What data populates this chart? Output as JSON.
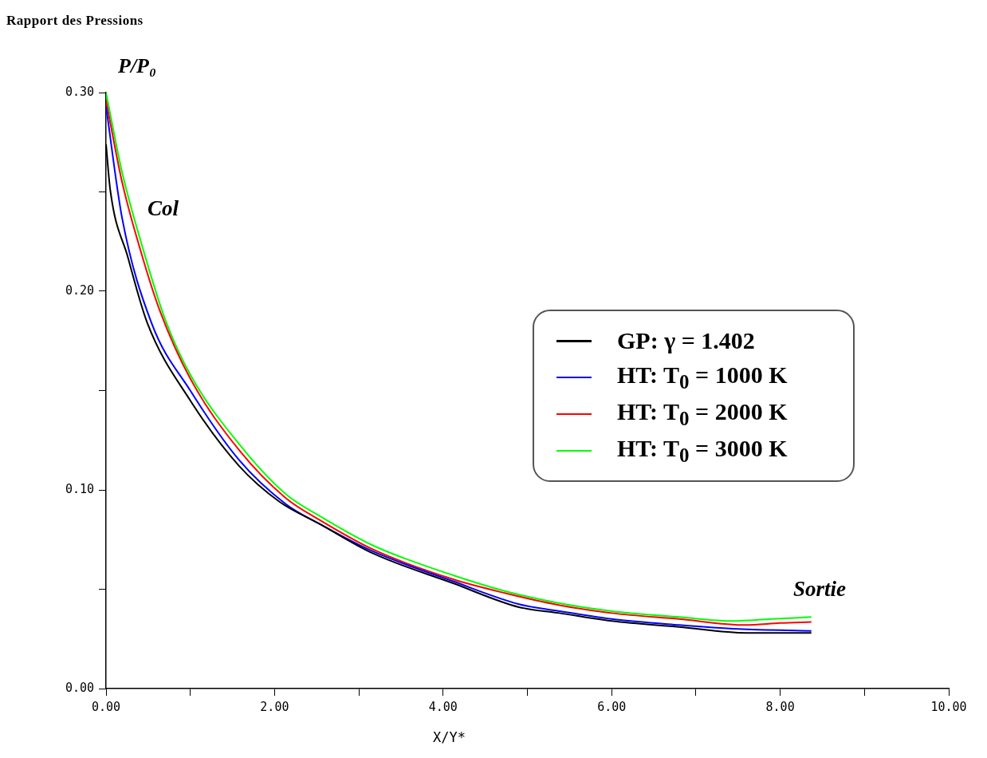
{
  "chart_data": {
    "type": "line",
    "title": "Rapport des Pressions",
    "xlabel": "X/Y*",
    "ylabel": "P/P₀",
    "annotations": [
      "Col",
      "Sortie"
    ],
    "xlim": [
      0,
      10
    ],
    "ylim": [
      0,
      0.3
    ],
    "xticks": [
      {
        "value": 0,
        "label": "0.00"
      },
      {
        "value": 1,
        "label": null
      },
      {
        "value": 2,
        "label": "2.00"
      },
      {
        "value": 3,
        "label": null
      },
      {
        "value": 4,
        "label": "4.00"
      },
      {
        "value": 5,
        "label": null
      },
      {
        "value": 6,
        "label": "6.00"
      },
      {
        "value": 7,
        "label": null
      },
      {
        "value": 8,
        "label": "8.00"
      },
      {
        "value": 9,
        "label": null
      },
      {
        "value": 10,
        "label": "10.00"
      }
    ],
    "yticks": [
      {
        "value": 0,
        "label": "0.00"
      },
      {
        "value": 0.05,
        "label": null
      },
      {
        "value": 0.1,
        "label": "0.10"
      },
      {
        "value": 0.15,
        "label": null
      },
      {
        "value": 0.2,
        "label": "0.20"
      },
      {
        "value": 0.25,
        "label": null
      },
      {
        "value": 0.3,
        "label": "0.30"
      }
    ],
    "grid": false,
    "legend": "right",
    "marker": "none",
    "line_style": "solid",
    "series": [
      {
        "name": "GP: γ = 1.402",
        "color": "#000000",
        "x": [
          0,
          0.05,
          0.26,
          0.49,
          1.0,
          1.58,
          2.06,
          2.53,
          3.17,
          4.12,
          4.9,
          5.38,
          6.0,
          6.8,
          7.6,
          8.37
        ],
        "values": [
          0.274,
          0.251,
          0.217,
          0.184,
          0.145,
          0.112,
          0.094,
          0.083,
          0.068,
          0.053,
          0.041,
          0.038,
          0.034,
          0.031,
          0.028,
          0.028
        ]
      },
      {
        "name": "HT: T$_{0}$ = 1000 K",
        "color": "#0000ff",
        "x": [
          0,
          0.19,
          0.54,
          1.0,
          1.58,
          2.13,
          2.53,
          3.17,
          4.12,
          4.9,
          5.38,
          6.0,
          6.8,
          7.5,
          8.37
        ],
        "values": [
          0.293,
          0.237,
          0.184,
          0.15,
          0.115,
          0.093,
          0.083,
          0.069,
          0.054,
          0.0425,
          0.039,
          0.035,
          0.032,
          0.03,
          0.029
        ]
      },
      {
        "name": "HT: T$_{0}$ = 2000 K",
        "color": "#ff0000",
        "x": [
          0,
          0.19,
          0.42,
          0.64,
          1.0,
          1.58,
          2.13,
          2.53,
          3.17,
          4.12,
          4.74,
          5.38,
          6.0,
          6.8,
          7.59,
          8.0,
          8.37
        ],
        "values": [
          0.296,
          0.255,
          0.219,
          0.19,
          0.156,
          0.12,
          0.096,
          0.085,
          0.07,
          0.055,
          0.048,
          0.042,
          0.038,
          0.035,
          0.032,
          0.033,
          0.0335
        ]
      },
      {
        "name": "HT: T$_{0}$ = 3000 K",
        "color": "#00ff00",
        "x": [
          0,
          0.19,
          0.42,
          0.7,
          1.0,
          1.58,
          2.13,
          2.53,
          3.17,
          4.12,
          4.74,
          5.38,
          6.0,
          6.8,
          7.44,
          7.9,
          8.37
        ],
        "values": [
          0.3,
          0.26,
          0.224,
          0.186,
          0.158,
          0.123,
          0.098,
          0.087,
          0.072,
          0.057,
          0.049,
          0.043,
          0.039,
          0.036,
          0.034,
          0.035,
          0.036
        ]
      }
    ]
  }
}
